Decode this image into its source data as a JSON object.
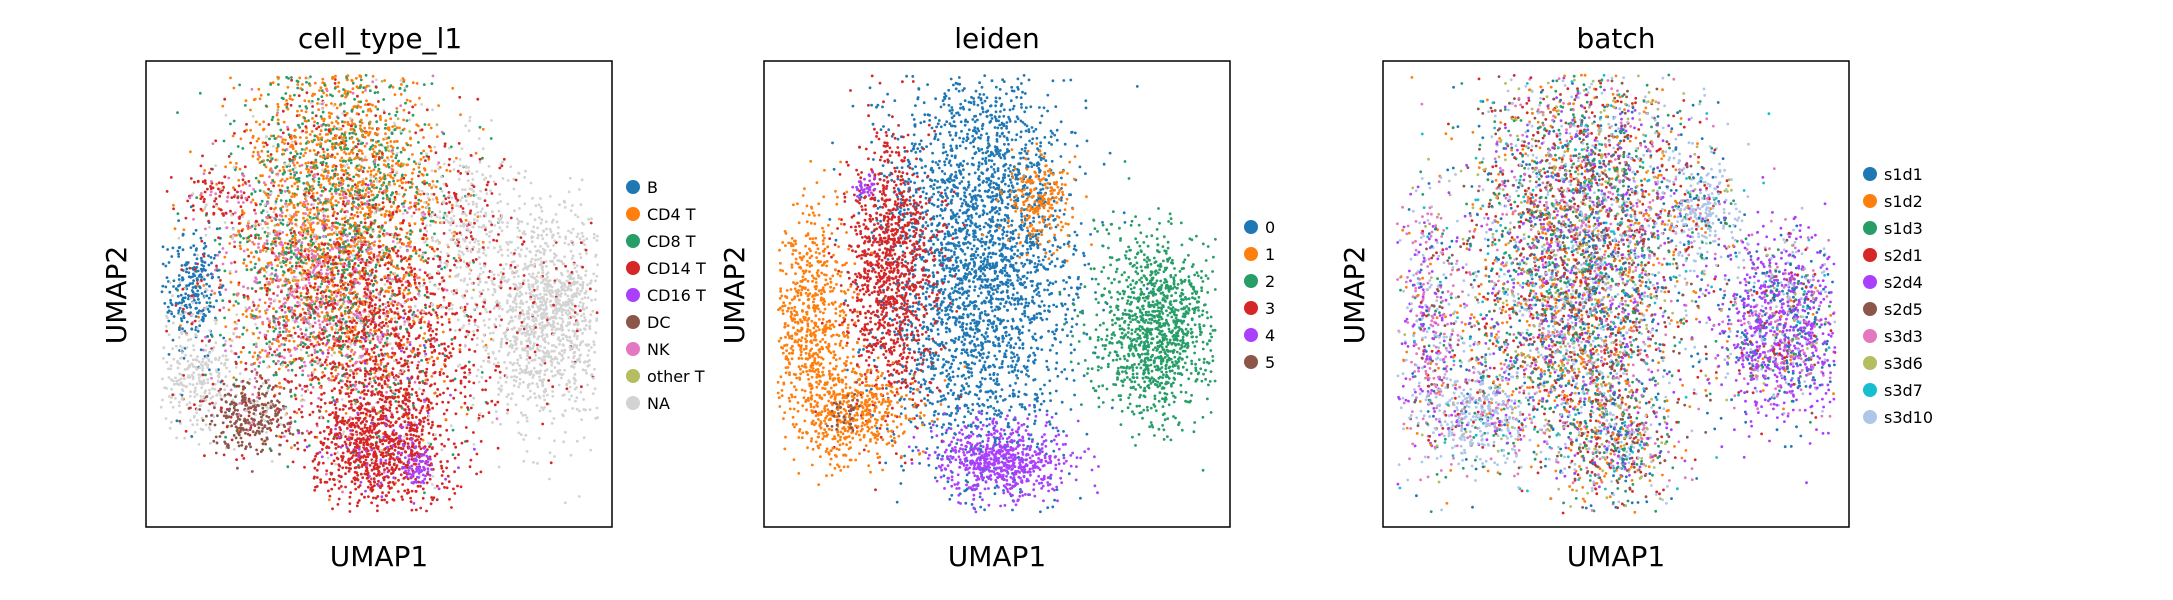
{
  "chart_data": [
    {
      "type": "scatter",
      "title": "cell_type_l1",
      "xlabel": "UMAP1",
      "ylabel": "UMAP2",
      "xticks": [],
      "yticks": [],
      "legend_position": "right",
      "categories": [
        "B",
        "CD4 T",
        "CD8 T",
        "CD14 T",
        "CD16 T",
        "DC",
        "NK",
        "other T",
        "NA"
      ],
      "colors": [
        "#1f77b4",
        "#ff7f0e",
        "#279e68",
        "#d62728",
        "#aa40fc",
        "#8c564b",
        "#e377c2",
        "#b5bd61",
        "#d3d3d3"
      ]
    },
    {
      "type": "scatter",
      "title": "leiden",
      "xlabel": "UMAP1",
      "ylabel": "UMAP2",
      "xticks": [],
      "yticks": [],
      "legend_position": "right",
      "categories": [
        "0",
        "1",
        "2",
        "3",
        "4",
        "5"
      ],
      "colors": [
        "#1f77b4",
        "#ff7f0e",
        "#279e68",
        "#d62728",
        "#aa40fc",
        "#8c564b"
      ]
    },
    {
      "type": "scatter",
      "title": "batch",
      "xlabel": "UMAP1",
      "ylabel": "UMAP2",
      "xticks": [],
      "yticks": [],
      "legend_position": "right",
      "categories": [
        "s1d1",
        "s1d2",
        "s1d3",
        "s2d1",
        "s2d4",
        "s2d5",
        "s3d3",
        "s3d6",
        "s3d7",
        "s3d10"
      ],
      "colors": [
        "#1f77b4",
        "#ff7f0e",
        "#279e68",
        "#d62728",
        "#aa40fc",
        "#8c564b",
        "#e377c2",
        "#b5bd61",
        "#17becf",
        "#aec7e8"
      ]
    }
  ]
}
